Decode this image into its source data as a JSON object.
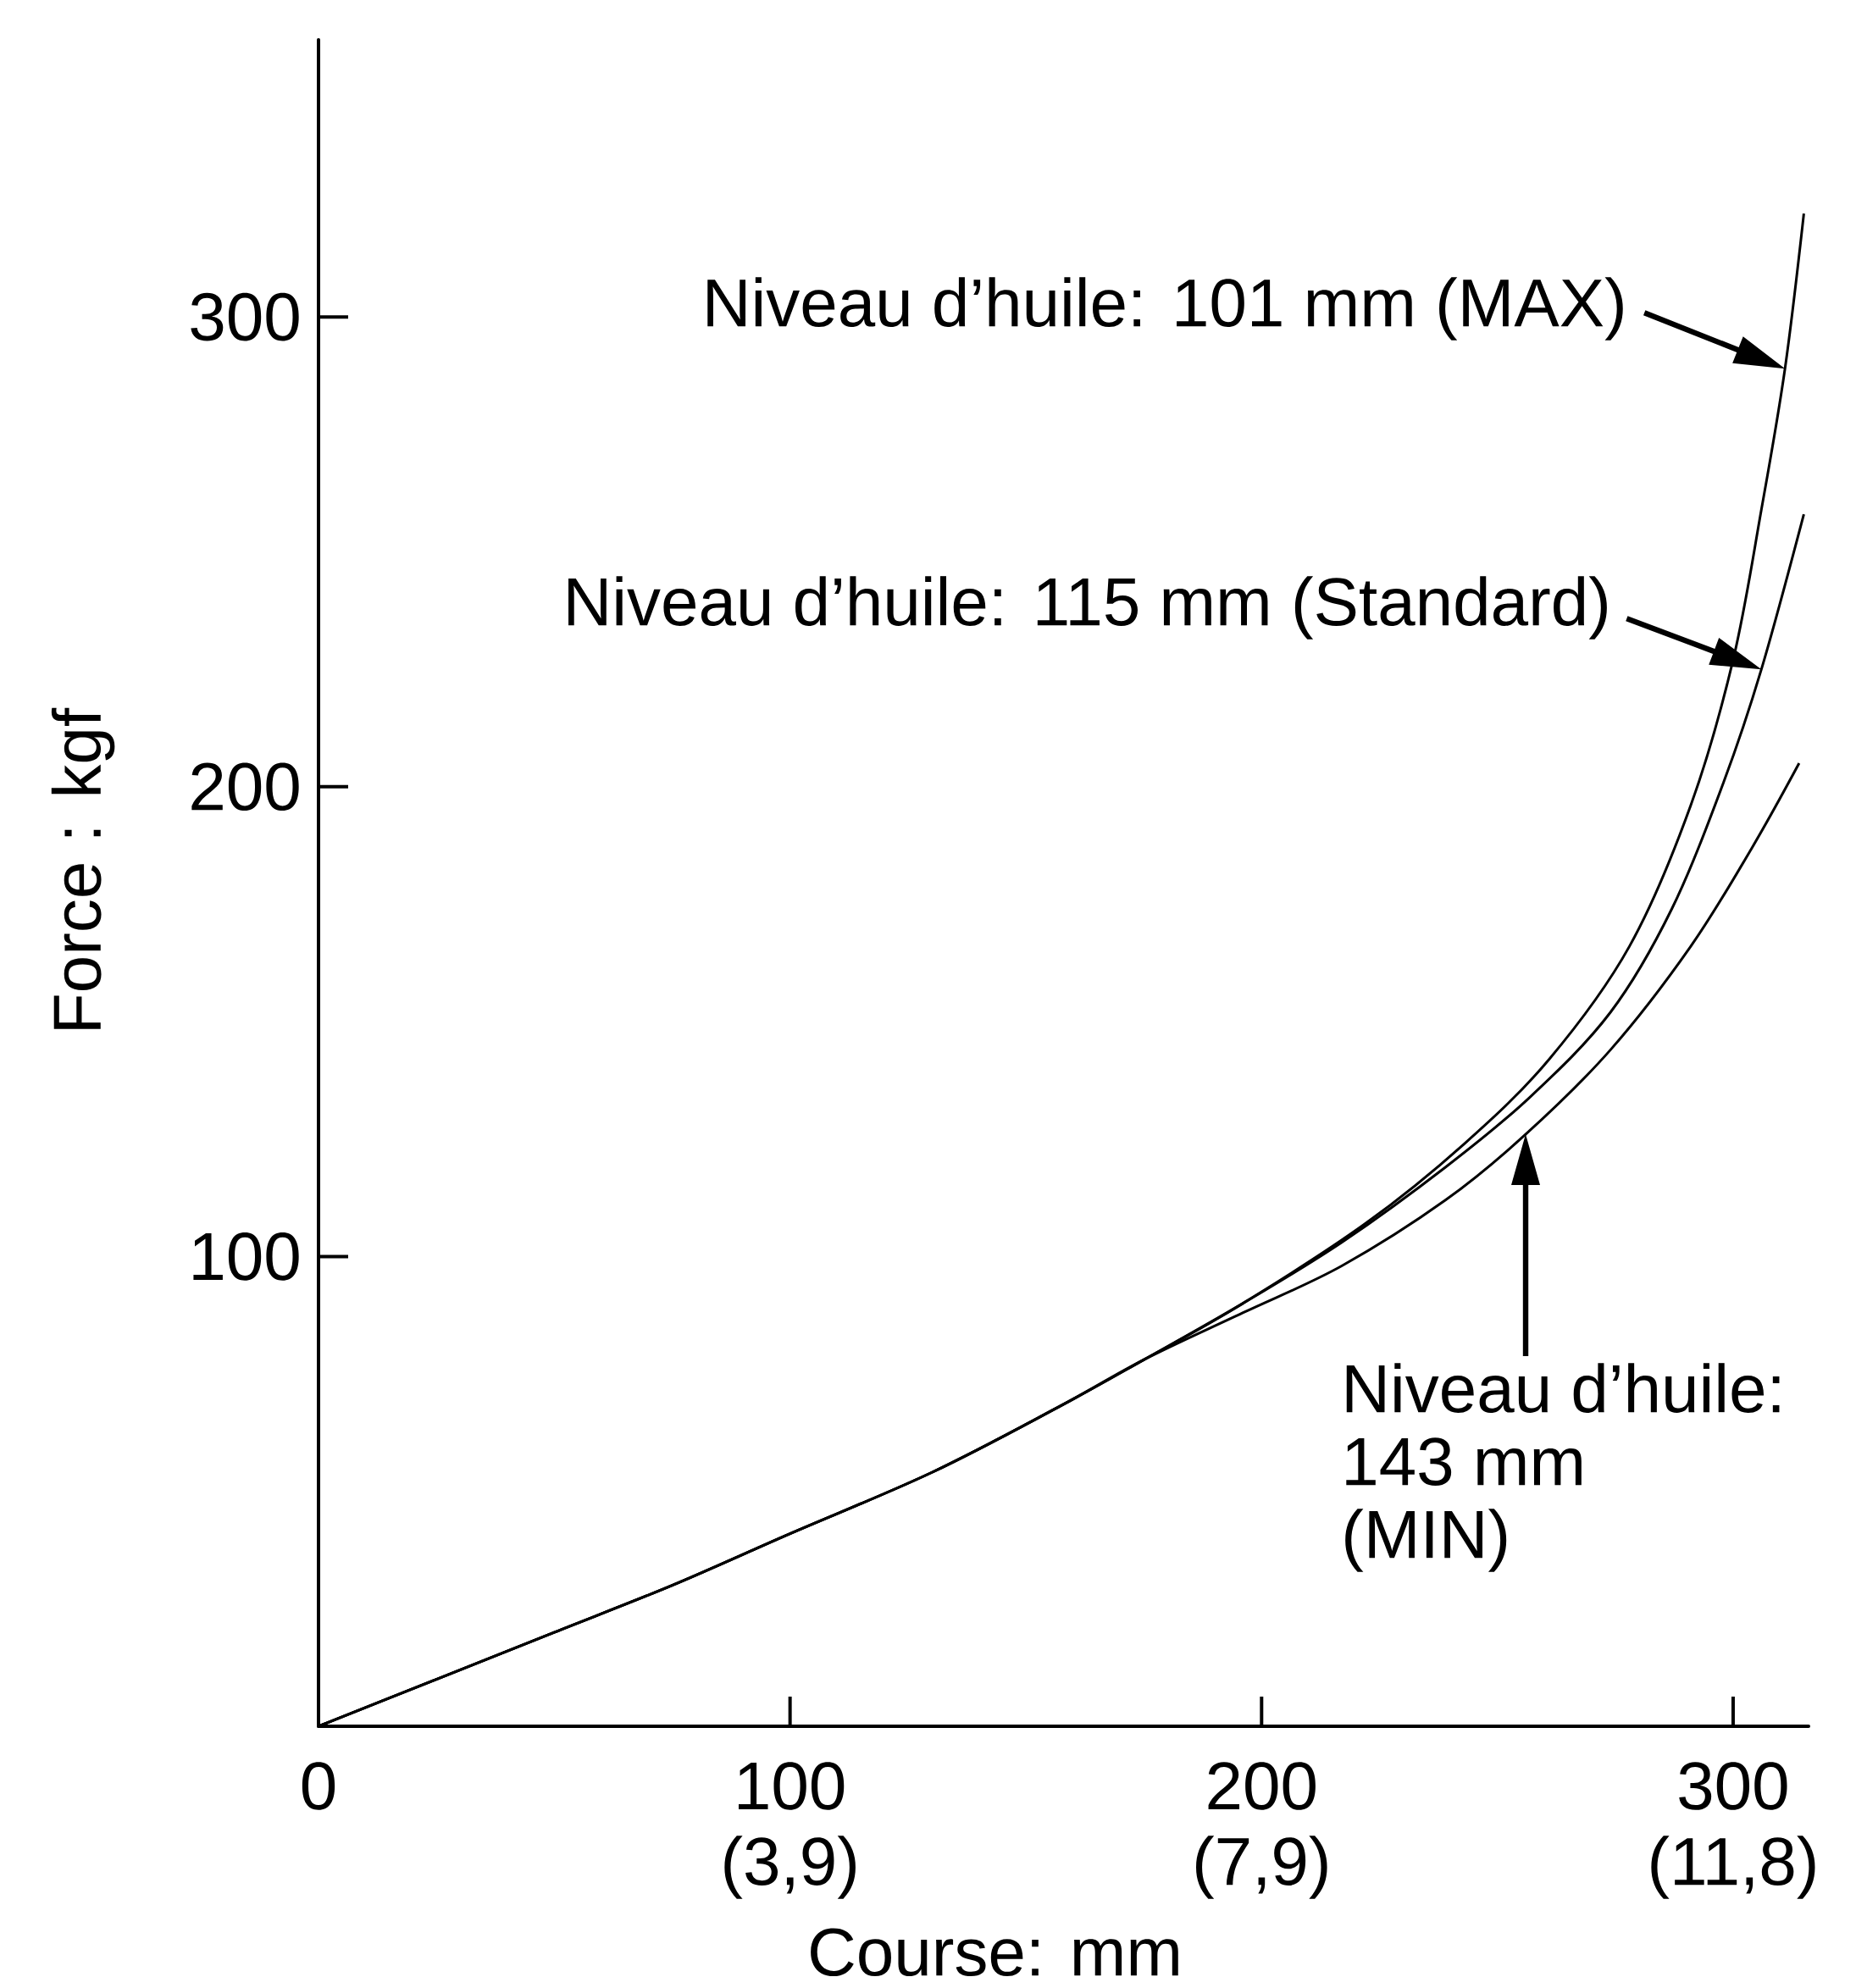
{
  "chart_data": {
    "type": "line",
    "xlabel": "Course: mm",
    "ylabel": "Force : kgf",
    "xlim": [
      0,
      316
    ],
    "ylim": [
      0,
      359
    ],
    "xticks": [
      0,
      100,
      200,
      300
    ],
    "x2lim": [
      0,
      12.441
    ],
    "x2ticks": [
      {
        "value": 3.937,
        "label": "(3,9)"
      },
      {
        "value": 7.874,
        "label": "(7,9)"
      },
      {
        "value": 11.811,
        "label": "(11,8)"
      }
    ],
    "yticks": [
      100,
      200,
      300
    ],
    "series": [
      {
        "color": "#000000",
        "x": [
          0,
          25,
          50,
          75,
          100,
          130,
          157,
          175,
          196,
          222,
          243,
          261,
          278,
          291,
          300,
          306,
          311,
          315
        ],
        "values": [
          0,
          10,
          20,
          30,
          41,
          54,
          68,
          78,
          90,
          107,
          124,
          142,
          166,
          196,
          227,
          259,
          289,
          322
        ]
      },
      {
        "color": "#000000",
        "x": [
          0,
          25,
          50,
          75,
          100,
          130,
          157,
          175,
          196,
          217,
          239,
          257,
          274,
          287,
          298,
          306,
          315
        ],
        "values": [
          0,
          10,
          20,
          30,
          41,
          54,
          68,
          78,
          90,
          103,
          119,
          134,
          152,
          174,
          201,
          225,
          258
        ]
      },
      {
        "color": "#000000",
        "x": [
          0,
          25,
          50,
          75,
          100,
          130,
          157,
          175,
          196,
          217,
          239,
          256,
          274,
          291,
          304,
          314
        ],
        "values": [
          0,
          10,
          20,
          30,
          41,
          54,
          68,
          78,
          88,
          98,
          112,
          126,
          144,
          166,
          187,
          205
        ]
      }
    ],
    "annotations": [
      {
        "text": "Niveau d’huile: 101 mm (MAX)",
        "x": 311,
        "y": 289
      },
      {
        "text": "Niveau d’huile: 115 mm (Standard)",
        "x": 306,
        "y": 225
      },
      "Niveau d’huile: 143 mm (MIN)"
    ]
  }
}
